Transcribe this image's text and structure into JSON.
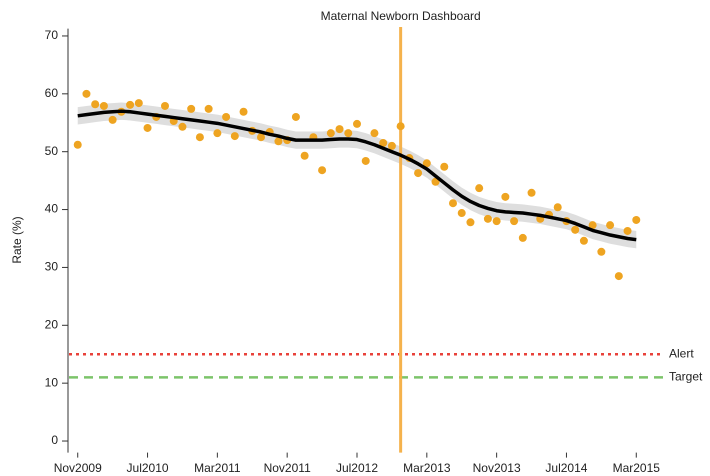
{
  "chart_data": {
    "type": "scatter",
    "title": "Maternal Newborn Dashboard",
    "y_label": "Rate (%)",
    "x": [
      "2009-11",
      "2009-12",
      "2010-01",
      "2010-02",
      "2010-03",
      "2010-04",
      "2010-05",
      "2010-06",
      "2010-07",
      "2010-08",
      "2010-09",
      "2010-10",
      "2010-11",
      "2010-12",
      "2011-01",
      "2011-02",
      "2011-03",
      "2011-04",
      "2011-05",
      "2011-06",
      "2011-07",
      "2011-08",
      "2011-09",
      "2011-10",
      "2011-11",
      "2011-12",
      "2012-01",
      "2012-02",
      "2012-03",
      "2012-04",
      "2012-05",
      "2012-06",
      "2012-07",
      "2012-08",
      "2012-09",
      "2012-10",
      "2012-11",
      "2012-12",
      "2013-01",
      "2013-02",
      "2013-03",
      "2013-04",
      "2013-05",
      "2013-06",
      "2013-07",
      "2013-08",
      "2013-09",
      "2013-10",
      "2013-11",
      "2013-12",
      "2014-01",
      "2014-02",
      "2014-03",
      "2014-04",
      "2014-05",
      "2014-06",
      "2014-07",
      "2014-08",
      "2014-09",
      "2014-10",
      "2014-11",
      "2014-12",
      "2015-01",
      "2015-02",
      "2015-03"
    ],
    "series": [
      {
        "color": "#eea421",
        "values": [
          51.2,
          60.0,
          58.2,
          57.9,
          55.5,
          56.9,
          58.1,
          58.4,
          54.1,
          56.0,
          57.9,
          55.3,
          54.3,
          57.4,
          52.5,
          57.4,
          53.2,
          56.0,
          52.7,
          56.9,
          53.6,
          52.5,
          53.4,
          51.8,
          52.0,
          56.0,
          49.3,
          52.5,
          46.8,
          53.2,
          53.9,
          53.2,
          54.8,
          48.4,
          53.2,
          51.5,
          51.0,
          54.4,
          48.9,
          46.3,
          48.0,
          44.8,
          47.4,
          41.1,
          39.4,
          37.8,
          43.7,
          38.4,
          38.0,
          42.2,
          38.0,
          35.1,
          42.9,
          38.4,
          39.1,
          40.4,
          38.0,
          36.5,
          34.6,
          37.3,
          32.7,
          37.3,
          28.5,
          36.3,
          38.2
        ]
      }
    ],
    "trend": {
      "color": "#000000",
      "band_color": "#dedede",
      "values": [
        56.2,
        56.4,
        56.6,
        56.8,
        56.9,
        57.0,
        56.9,
        56.7,
        56.5,
        56.3,
        56.1,
        55.9,
        55.7,
        55.5,
        55.3,
        55.1,
        54.9,
        54.6,
        54.3,
        54.0,
        53.7,
        53.4,
        53.0,
        52.7,
        52.3,
        52.0,
        52.0,
        52.0,
        52.0,
        52.1,
        52.2,
        52.2,
        52.1,
        51.7,
        51.2,
        50.6,
        50.0,
        49.4,
        48.7,
        47.9,
        47.0,
        45.8,
        44.6,
        43.4,
        42.3,
        41.4,
        40.7,
        40.2,
        39.8,
        39.6,
        39.5,
        39.4,
        39.2,
        39.0,
        38.7,
        38.4,
        38.1,
        37.6,
        37.0,
        36.4,
        36.0,
        35.6,
        35.3,
        35.0,
        34.8
      ],
      "lower": [
        54.7,
        54.9,
        55.1,
        55.3,
        55.4,
        55.5,
        55.4,
        55.2,
        55.0,
        54.8,
        54.6,
        54.4,
        54.2,
        54.0,
        53.8,
        53.6,
        53.4,
        53.1,
        52.8,
        52.5,
        52.2,
        51.9,
        51.5,
        51.2,
        50.8,
        50.5,
        50.5,
        50.5,
        50.5,
        50.6,
        50.7,
        50.7,
        50.6,
        50.2,
        49.7,
        49.1,
        48.5,
        47.9,
        47.2,
        46.4,
        45.5,
        44.3,
        43.1,
        41.9,
        40.8,
        39.9,
        39.2,
        38.7,
        38.3,
        38.1,
        38.0,
        37.9,
        37.7,
        37.5,
        37.2,
        36.9,
        36.6,
        36.1,
        35.5,
        34.9,
        34.5,
        34.1,
        33.8,
        33.5,
        33.3
      ],
      "upper": [
        57.7,
        57.9,
        58.1,
        58.3,
        58.4,
        58.5,
        58.4,
        58.2,
        58.0,
        57.8,
        57.6,
        57.4,
        57.2,
        57.0,
        56.8,
        56.6,
        56.4,
        56.1,
        55.8,
        55.5,
        55.2,
        54.9,
        54.5,
        54.2,
        53.8,
        53.5,
        53.5,
        53.5,
        53.5,
        53.6,
        53.7,
        53.7,
        53.6,
        53.2,
        52.7,
        52.1,
        51.5,
        50.9,
        50.2,
        49.4,
        48.5,
        47.3,
        46.1,
        44.9,
        43.8,
        42.9,
        42.2,
        41.7,
        41.3,
        41.1,
        41.0,
        40.9,
        40.7,
        40.5,
        40.2,
        39.9,
        39.6,
        39.1,
        38.5,
        37.9,
        37.5,
        37.1,
        36.8,
        36.5,
        36.3
      ]
    },
    "ylim": [
      -2,
      73
    ],
    "yticks": [
      0,
      10,
      20,
      30,
      40,
      50,
      60,
      70
    ],
    "xlim": [
      "2009-10",
      "2015-04"
    ],
    "xticks": [
      {
        "value": "2009-11",
        "label": "Nov2009"
      },
      {
        "value": "2010-07",
        "label": "Jul2010"
      },
      {
        "value": "2011-03",
        "label": "Mar2011"
      },
      {
        "value": "2011-11",
        "label": "Nov2011"
      },
      {
        "value": "2012-07",
        "label": "Jul2012"
      },
      {
        "value": "2013-03",
        "label": "Mar2013"
      },
      {
        "value": "2013-11",
        "label": "Nov2013"
      },
      {
        "value": "2014-07",
        "label": "Jul2014"
      },
      {
        "value": "2015-03",
        "label": "Mar2015"
      }
    ],
    "reference_lines": [
      {
        "value": 15,
        "label": "Alert",
        "color": "#e8413a",
        "style": "dotted"
      },
      {
        "value": 11,
        "label": "Target",
        "color": "#7cc46a",
        "style": "dashed"
      }
    ],
    "marker_line": {
      "x": "2012-12",
      "color": "#f5b24c"
    }
  }
}
